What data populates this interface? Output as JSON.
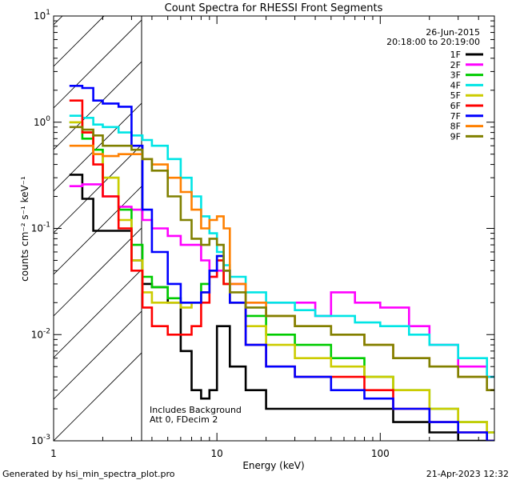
{
  "chart_data": {
    "type": "line",
    "title": "Count Spectra for RHESSI Front Segments",
    "xlabel": "Energy (keV)",
    "ylabel": "counts cm⁻² s⁻¹ keV⁻¹",
    "xscale": "log",
    "yscale": "log",
    "xlim": [
      1,
      500
    ],
    "ylim": [
      0.001,
      10
    ],
    "x_ticks": [
      {
        "value": 1,
        "label": "1"
      },
      {
        "value": 10,
        "label": "10"
      },
      {
        "value": 100,
        "label": "100"
      }
    ],
    "y_ticks": [
      {
        "value": 0.001,
        "label_base": "10",
        "label_exp": "-3"
      },
      {
        "value": 0.01,
        "label_base": "10",
        "label_exp": "-2"
      },
      {
        "value": 0.1,
        "label_base": "10",
        "label_exp": "-1"
      },
      {
        "value": 1,
        "label_base": "10",
        "label_exp": "0"
      },
      {
        "value": 10,
        "label_base": "10",
        "label_exp": "1"
      }
    ],
    "shaded_region": {
      "x_min": 1,
      "x_max": 3,
      "pattern": "hatched"
    },
    "info_date": "26-Jun-2015",
    "info_time": "20:18:00 to 20:19:00",
    "annotations": [
      "Includes Background",
      "Att 0, FDecim 2"
    ],
    "series": [
      {
        "name": "1F",
        "color": "#000000",
        "points": [
          [
            1.25,
            0.32
          ],
          [
            1.5,
            0.19
          ],
          [
            1.75,
            0.095
          ],
          [
            2,
            0.095
          ],
          [
            2.5,
            0.095
          ],
          [
            3,
            0.05
          ],
          [
            3.5,
            0.03
          ],
          [
            4,
            0.028
          ],
          [
            5,
            0.02
          ],
          [
            6,
            0.007
          ],
          [
            7,
            0.003
          ],
          [
            8,
            0.0025
          ],
          [
            9,
            0.003
          ],
          [
            10,
            0.012
          ],
          [
            12,
            0.005
          ],
          [
            15,
            0.003
          ],
          [
            20,
            0.002
          ],
          [
            30,
            0.002
          ],
          [
            50,
            0.002
          ],
          [
            80,
            0.002
          ],
          [
            120,
            0.0015
          ],
          [
            200,
            0.0012
          ],
          [
            300,
            0.001
          ],
          [
            450,
            0.001
          ]
        ]
      },
      {
        "name": "2F",
        "color": "#ff00ff",
        "points": [
          [
            1.25,
            0.25
          ],
          [
            1.5,
            0.26
          ],
          [
            1.75,
            0.26
          ],
          [
            2,
            0.2
          ],
          [
            2.5,
            0.16
          ],
          [
            3,
            0.15
          ],
          [
            3.5,
            0.12
          ],
          [
            4,
            0.1
          ],
          [
            5,
            0.085
          ],
          [
            6,
            0.07
          ],
          [
            7,
            0.07
          ],
          [
            8,
            0.05
          ],
          [
            9,
            0.035
          ],
          [
            10,
            0.04
          ],
          [
            11,
            0.04
          ],
          [
            12,
            0.03
          ],
          [
            15,
            0.02
          ],
          [
            20,
            0.02
          ],
          [
            30,
            0.02
          ],
          [
            40,
            0.015
          ],
          [
            50,
            0.025
          ],
          [
            70,
            0.02
          ],
          [
            100,
            0.018
          ],
          [
            150,
            0.012
          ],
          [
            200,
            0.008
          ],
          [
            300,
            0.005
          ],
          [
            450,
            0.004
          ]
        ]
      },
      {
        "name": "3F",
        "color": "#00cc00",
        "points": [
          [
            1.25,
            1.0
          ],
          [
            1.5,
            0.7
          ],
          [
            1.75,
            0.55
          ],
          [
            2,
            0.3
          ],
          [
            2.5,
            0.15
          ],
          [
            3,
            0.07
          ],
          [
            3.5,
            0.035
          ],
          [
            4,
            0.028
          ],
          [
            5,
            0.022
          ],
          [
            6,
            0.02
          ],
          [
            7,
            0.02
          ],
          [
            8,
            0.03
          ],
          [
            9,
            0.04
          ],
          [
            10,
            0.055
          ],
          [
            11,
            0.03
          ],
          [
            12,
            0.02
          ],
          [
            15,
            0.015
          ],
          [
            20,
            0.01
          ],
          [
            30,
            0.008
          ],
          [
            50,
            0.006
          ],
          [
            80,
            0.004
          ],
          [
            120,
            0.003
          ],
          [
            200,
            0.002
          ],
          [
            300,
            0.0015
          ],
          [
            450,
            0.0012
          ]
        ]
      },
      {
        "name": "4F",
        "color": "#00e5e5",
        "points": [
          [
            1.25,
            1.15
          ],
          [
            1.5,
            1.1
          ],
          [
            1.75,
            0.95
          ],
          [
            2,
            0.9
          ],
          [
            2.5,
            0.8
          ],
          [
            3,
            0.75
          ],
          [
            3.5,
            0.68
          ],
          [
            4,
            0.6
          ],
          [
            5,
            0.45
          ],
          [
            6,
            0.3
          ],
          [
            7,
            0.2
          ],
          [
            8,
            0.13
          ],
          [
            9,
            0.09
          ],
          [
            10,
            0.06
          ],
          [
            11,
            0.045
          ],
          [
            12,
            0.035
          ],
          [
            15,
            0.025
          ],
          [
            20,
            0.02
          ],
          [
            30,
            0.017
          ],
          [
            40,
            0.015
          ],
          [
            50,
            0.015
          ],
          [
            70,
            0.013
          ],
          [
            100,
            0.012
          ],
          [
            150,
            0.01
          ],
          [
            200,
            0.008
          ],
          [
            300,
            0.006
          ],
          [
            450,
            0.004
          ]
        ]
      },
      {
        "name": "5F",
        "color": "#cccc00",
        "points": [
          [
            1.25,
            1.0
          ],
          [
            1.5,
            0.8
          ],
          [
            1.75,
            0.5
          ],
          [
            2,
            0.3
          ],
          [
            2.5,
            0.12
          ],
          [
            3,
            0.05
          ],
          [
            3.5,
            0.025
          ],
          [
            4,
            0.02
          ],
          [
            5,
            0.02
          ],
          [
            6,
            0.018
          ],
          [
            7,
            0.02
          ],
          [
            8,
            0.025
          ],
          [
            9,
            0.04
          ],
          [
            10,
            0.05
          ],
          [
            11,
            0.03
          ],
          [
            12,
            0.02
          ],
          [
            15,
            0.012
          ],
          [
            20,
            0.008
          ],
          [
            30,
            0.006
          ],
          [
            50,
            0.005
          ],
          [
            80,
            0.004
          ],
          [
            120,
            0.003
          ],
          [
            200,
            0.002
          ],
          [
            300,
            0.0015
          ],
          [
            450,
            0.0012
          ]
        ]
      },
      {
        "name": "6F",
        "color": "#ff0000",
        "points": [
          [
            1.25,
            1.6
          ],
          [
            1.5,
            0.8
          ],
          [
            1.75,
            0.4
          ],
          [
            2,
            0.2
          ],
          [
            2.5,
            0.1
          ],
          [
            3,
            0.04
          ],
          [
            3.5,
            0.018
          ],
          [
            4,
            0.012
          ],
          [
            5,
            0.01
          ],
          [
            6,
            0.01
          ],
          [
            7,
            0.012
          ],
          [
            8,
            0.02
          ],
          [
            9,
            0.035
          ],
          [
            10,
            0.05
          ],
          [
            11,
            0.03
          ],
          [
            12,
            0.02
          ],
          [
            15,
            0.008
          ],
          [
            20,
            0.005
          ],
          [
            30,
            0.004
          ],
          [
            50,
            0.004
          ],
          [
            80,
            0.003
          ],
          [
            120,
            0.002
          ],
          [
            200,
            0.0015
          ],
          [
            300,
            0.0012
          ],
          [
            450,
            0.001
          ]
        ]
      },
      {
        "name": "7F",
        "color": "#0000ff",
        "points": [
          [
            1.25,
            2.2
          ],
          [
            1.5,
            2.1
          ],
          [
            1.75,
            1.6
          ],
          [
            2,
            1.5
          ],
          [
            2.5,
            1.4
          ],
          [
            3,
            0.6
          ],
          [
            3.5,
            0.15
          ],
          [
            4,
            0.06
          ],
          [
            5,
            0.03
          ],
          [
            6,
            0.02
          ],
          [
            7,
            0.02
          ],
          [
            8,
            0.025
          ],
          [
            9,
            0.04
          ],
          [
            10,
            0.055
          ],
          [
            11,
            0.04
          ],
          [
            12,
            0.02
          ],
          [
            15,
            0.008
          ],
          [
            20,
            0.005
          ],
          [
            30,
            0.004
          ],
          [
            50,
            0.003
          ],
          [
            80,
            0.0025
          ],
          [
            120,
            0.002
          ],
          [
            200,
            0.0015
          ],
          [
            300,
            0.0012
          ],
          [
            450,
            0.001
          ]
        ]
      },
      {
        "name": "8F",
        "color": "#ff8000",
        "points": [
          [
            1.25,
            0.6
          ],
          [
            1.5,
            0.6
          ],
          [
            1.75,
            0.5
          ],
          [
            2,
            0.48
          ],
          [
            2.5,
            0.5
          ],
          [
            3,
            0.5
          ],
          [
            3.5,
            0.45
          ],
          [
            4,
            0.4
          ],
          [
            5,
            0.3
          ],
          [
            6,
            0.22
          ],
          [
            7,
            0.15
          ],
          [
            8,
            0.1
          ],
          [
            9,
            0.12
          ],
          [
            10,
            0.13
          ],
          [
            11,
            0.1
          ],
          [
            12,
            0.03
          ],
          [
            15,
            0.02
          ],
          [
            20,
            0.015
          ],
          [
            30,
            0.012
          ],
          [
            50,
            0.01
          ],
          [
            80,
            0.008
          ],
          [
            120,
            0.006
          ],
          [
            200,
            0.005
          ],
          [
            300,
            0.004
          ],
          [
            450,
            0.003
          ]
        ]
      },
      {
        "name": "9F",
        "color": "#808000",
        "points": [
          [
            1.25,
            0.9
          ],
          [
            1.5,
            0.85
          ],
          [
            1.75,
            0.75
          ],
          [
            2,
            0.6
          ],
          [
            2.5,
            0.6
          ],
          [
            3,
            0.55
          ],
          [
            3.5,
            0.45
          ],
          [
            4,
            0.35
          ],
          [
            5,
            0.2
          ],
          [
            6,
            0.12
          ],
          [
            7,
            0.08
          ],
          [
            8,
            0.07
          ],
          [
            9,
            0.08
          ],
          [
            10,
            0.07
          ],
          [
            11,
            0.04
          ],
          [
            12,
            0.025
          ],
          [
            15,
            0.018
          ],
          [
            20,
            0.015
          ],
          [
            30,
            0.012
          ],
          [
            50,
            0.01
          ],
          [
            80,
            0.008
          ],
          [
            120,
            0.006
          ],
          [
            200,
            0.005
          ],
          [
            300,
            0.004
          ],
          [
            450,
            0.003
          ]
        ]
      }
    ]
  },
  "footer": {
    "generated_by": "Generated by hsi_min_spectra_plot.pro",
    "datetime": "21-Apr-2023 12:32"
  }
}
